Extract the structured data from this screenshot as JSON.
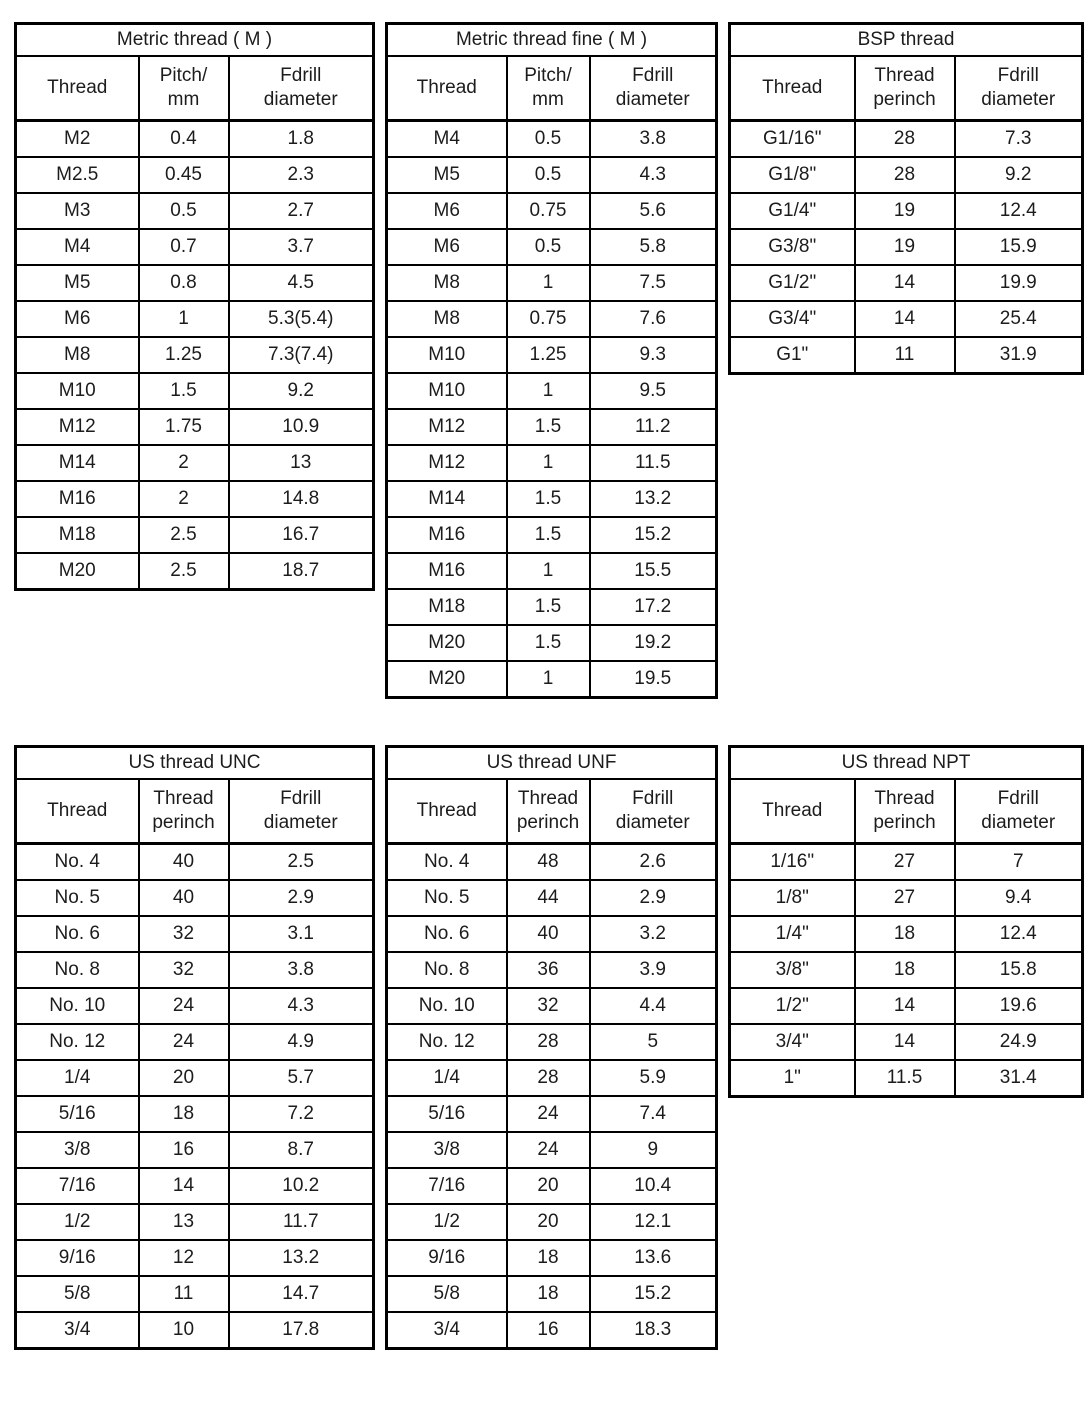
{
  "page": {
    "background_color": "#ffffff",
    "text_color": "#1c1c1c",
    "border_color": "#000000"
  },
  "tables": [
    {
      "title": "Metric thread ( M )",
      "headers": [
        "Thread",
        "Pitch/\nmm",
        "Fdrill\ndiameter"
      ],
      "rows": [
        [
          "M2",
          "0.4",
          "1.8"
        ],
        [
          "M2.5",
          "0.45",
          "2.3"
        ],
        [
          "M3",
          "0.5",
          "2.7"
        ],
        [
          "M4",
          "0.7",
          "3.7"
        ],
        [
          "M5",
          "0.8",
          "4.5"
        ],
        [
          "M6",
          "1",
          "5.3(5.4)"
        ],
        [
          "M8",
          "1.25",
          "7.3(7.4)"
        ],
        [
          "M10",
          "1.5",
          "9.2"
        ],
        [
          "M12",
          "1.75",
          "10.9"
        ],
        [
          "M14",
          "2",
          "13"
        ],
        [
          "M16",
          "2",
          "14.8"
        ],
        [
          "M18",
          "2.5",
          "16.7"
        ],
        [
          "M20",
          "2.5",
          "18.7"
        ]
      ]
    },
    {
      "title": "Metric thread fine ( M )",
      "headers": [
        "Thread",
        "Pitch/\nmm",
        "Fdrill\ndiameter"
      ],
      "rows": [
        [
          "M4",
          "0.5",
          "3.8"
        ],
        [
          "M5",
          "0.5",
          "4.3"
        ],
        [
          "M6",
          "0.75",
          "5.6"
        ],
        [
          "M6",
          "0.5",
          "5.8"
        ],
        [
          "M8",
          "1",
          "7.5"
        ],
        [
          "M8",
          "0.75",
          "7.6"
        ],
        [
          "M10",
          "1.25",
          "9.3"
        ],
        [
          "M10",
          "1",
          "9.5"
        ],
        [
          "M12",
          "1.5",
          "11.2"
        ],
        [
          "M12",
          "1",
          "11.5"
        ],
        [
          "M14",
          "1.5",
          "13.2"
        ],
        [
          "M16",
          "1.5",
          "15.2"
        ],
        [
          "M16",
          "1",
          "15.5"
        ],
        [
          "M18",
          "1.5",
          "17.2"
        ],
        [
          "M20",
          "1.5",
          "19.2"
        ],
        [
          "M20",
          "1",
          "19.5"
        ]
      ]
    },
    {
      "title": "BSP thread",
      "headers": [
        "Thread",
        "Thread\nperinch",
        "Fdrill\ndiameter"
      ],
      "rows": [
        [
          "G1/16\"",
          "28",
          "7.3"
        ],
        [
          "G1/8\"",
          "28",
          "9.2"
        ],
        [
          "G1/4\"",
          "19",
          "12.4"
        ],
        [
          "G3/8\"",
          "19",
          "15.9"
        ],
        [
          "G1/2\"",
          "14",
          "19.9"
        ],
        [
          "G3/4\"",
          "14",
          "25.4"
        ],
        [
          "G1\"",
          "11",
          "31.9"
        ]
      ]
    },
    {
      "title": "US thread UNC",
      "headers": [
        "Thread",
        "Thread\nperinch",
        "Fdrill\ndiameter"
      ],
      "rows": [
        [
          "No. 4",
          "40",
          "2.5"
        ],
        [
          "No. 5",
          "40",
          "2.9"
        ],
        [
          "No. 6",
          "32",
          "3.1"
        ],
        [
          "No. 8",
          "32",
          "3.8"
        ],
        [
          "No. 10",
          "24",
          "4.3"
        ],
        [
          "No. 12",
          "24",
          "4.9"
        ],
        [
          "1/4",
          "20",
          "5.7"
        ],
        [
          "5/16",
          "18",
          "7.2"
        ],
        [
          "3/8",
          "16",
          "8.7"
        ],
        [
          "7/16",
          "14",
          "10.2"
        ],
        [
          "1/2",
          "13",
          "11.7"
        ],
        [
          "9/16",
          "12",
          "13.2"
        ],
        [
          "5/8",
          "11",
          "14.7"
        ],
        [
          "3/4",
          "10",
          "17.8"
        ]
      ]
    },
    {
      "title": "US thread UNF",
      "headers": [
        "Thread",
        "Thread\nperinch",
        "Fdrill\ndiameter"
      ],
      "rows": [
        [
          "No. 4",
          "48",
          "2.6"
        ],
        [
          "No. 5",
          "44",
          "2.9"
        ],
        [
          "No. 6",
          "40",
          "3.2"
        ],
        [
          "No. 8",
          "36",
          "3.9"
        ],
        [
          "No. 10",
          "32",
          "4.4"
        ],
        [
          "No. 12",
          "28",
          "5"
        ],
        [
          "1/4",
          "28",
          "5.9"
        ],
        [
          "5/16",
          "24",
          "7.4"
        ],
        [
          "3/8",
          "24",
          "9"
        ],
        [
          "7/16",
          "20",
          "10.4"
        ],
        [
          "1/2",
          "20",
          "12.1"
        ],
        [
          "9/16",
          "18",
          "13.6"
        ],
        [
          "5/8",
          "18",
          "15.2"
        ],
        [
          "3/4",
          "16",
          "18.3"
        ]
      ]
    },
    {
      "title": "US thread NPT",
      "headers": [
        "Thread",
        "Thread\nperinch",
        "Fdrill\ndiameter"
      ],
      "rows": [
        [
          "1/16\"",
          "27",
          "7"
        ],
        [
          "1/8\"",
          "27",
          "9.4"
        ],
        [
          "1/4\"",
          "18",
          "12.4"
        ],
        [
          "3/8\"",
          "18",
          "15.8"
        ],
        [
          "1/2\"",
          "14",
          "19.6"
        ],
        [
          "3/4\"",
          "14",
          "24.9"
        ],
        [
          "1\"",
          "11.5",
          "31.4"
        ]
      ]
    }
  ]
}
